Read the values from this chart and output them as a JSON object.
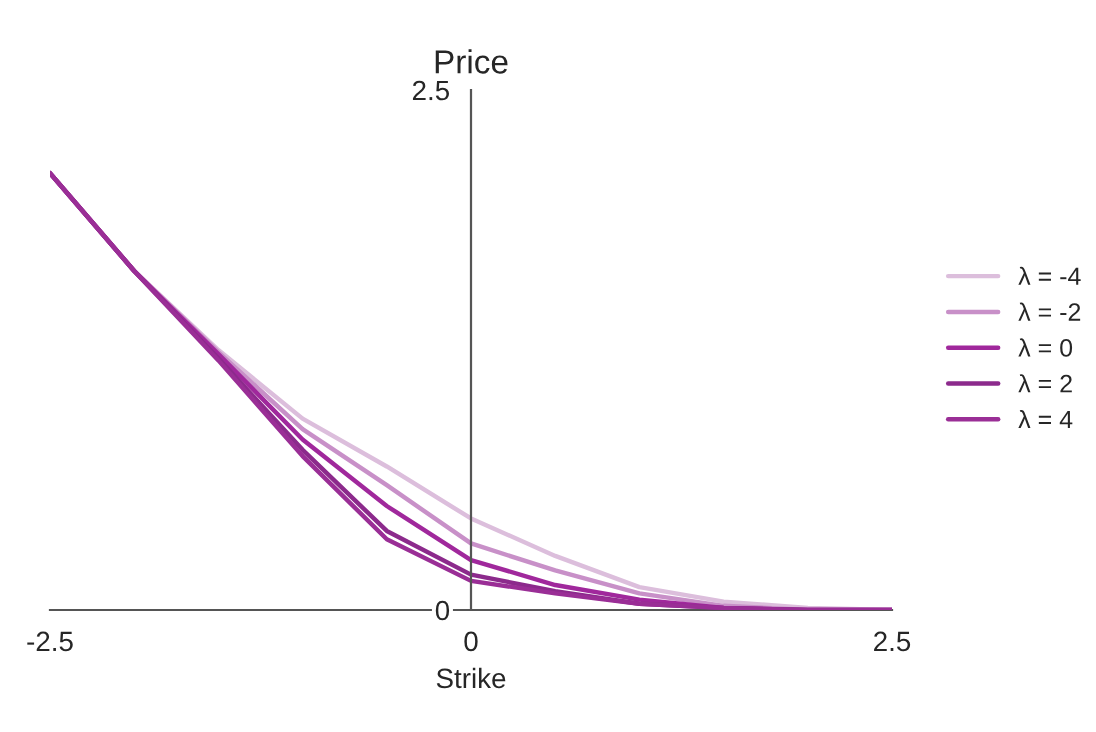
{
  "chart_data": {
    "type": "line",
    "title": "Price",
    "xlabel": "Strike",
    "x": [
      -2.5,
      -2,
      -1.5,
      -1,
      -0.5,
      0,
      0.5,
      1,
      1.5,
      2,
      2.5
    ],
    "series": [
      {
        "name": "λ = -4",
        "color": "#dcbedc",
        "values": [
          2.1,
          1.63,
          1.25,
          0.92,
          0.69,
          0.44,
          0.26,
          0.11,
          0.04,
          0.01,
          0
        ]
      },
      {
        "name": "λ = -2",
        "color": "#c890c8",
        "values": [
          2.1,
          1.63,
          1.24,
          0.87,
          0.6,
          0.32,
          0.19,
          0.08,
          0.02,
          0,
          0
        ]
      },
      {
        "name": "λ = 0",
        "color": "#a0289c",
        "values": [
          2.1,
          1.63,
          1.23,
          0.82,
          0.5,
          0.24,
          0.12,
          0.05,
          0.01,
          0,
          0
        ]
      },
      {
        "name": "λ = 2",
        "color": "#8c2a8c",
        "values": [
          2.1,
          1.63,
          1.21,
          0.77,
          0.38,
          0.17,
          0.09,
          0.03,
          0.01,
          0,
          0
        ]
      },
      {
        "name": "λ = 4",
        "color": "#9a2e96",
        "values": [
          2.1,
          1.63,
          1.2,
          0.74,
          0.34,
          0.14,
          0.08,
          0.03,
          0.01,
          0,
          0
        ]
      }
    ],
    "xlim": [
      -2.5,
      2.5
    ],
    "ylim": [
      0,
      2.5
    ],
    "xticks": [
      -2.5,
      0,
      2.5
    ],
    "yticks": [
      0,
      2.5
    ],
    "grid": false,
    "legend": "right",
    "marker": "none",
    "line_style": "solid"
  }
}
